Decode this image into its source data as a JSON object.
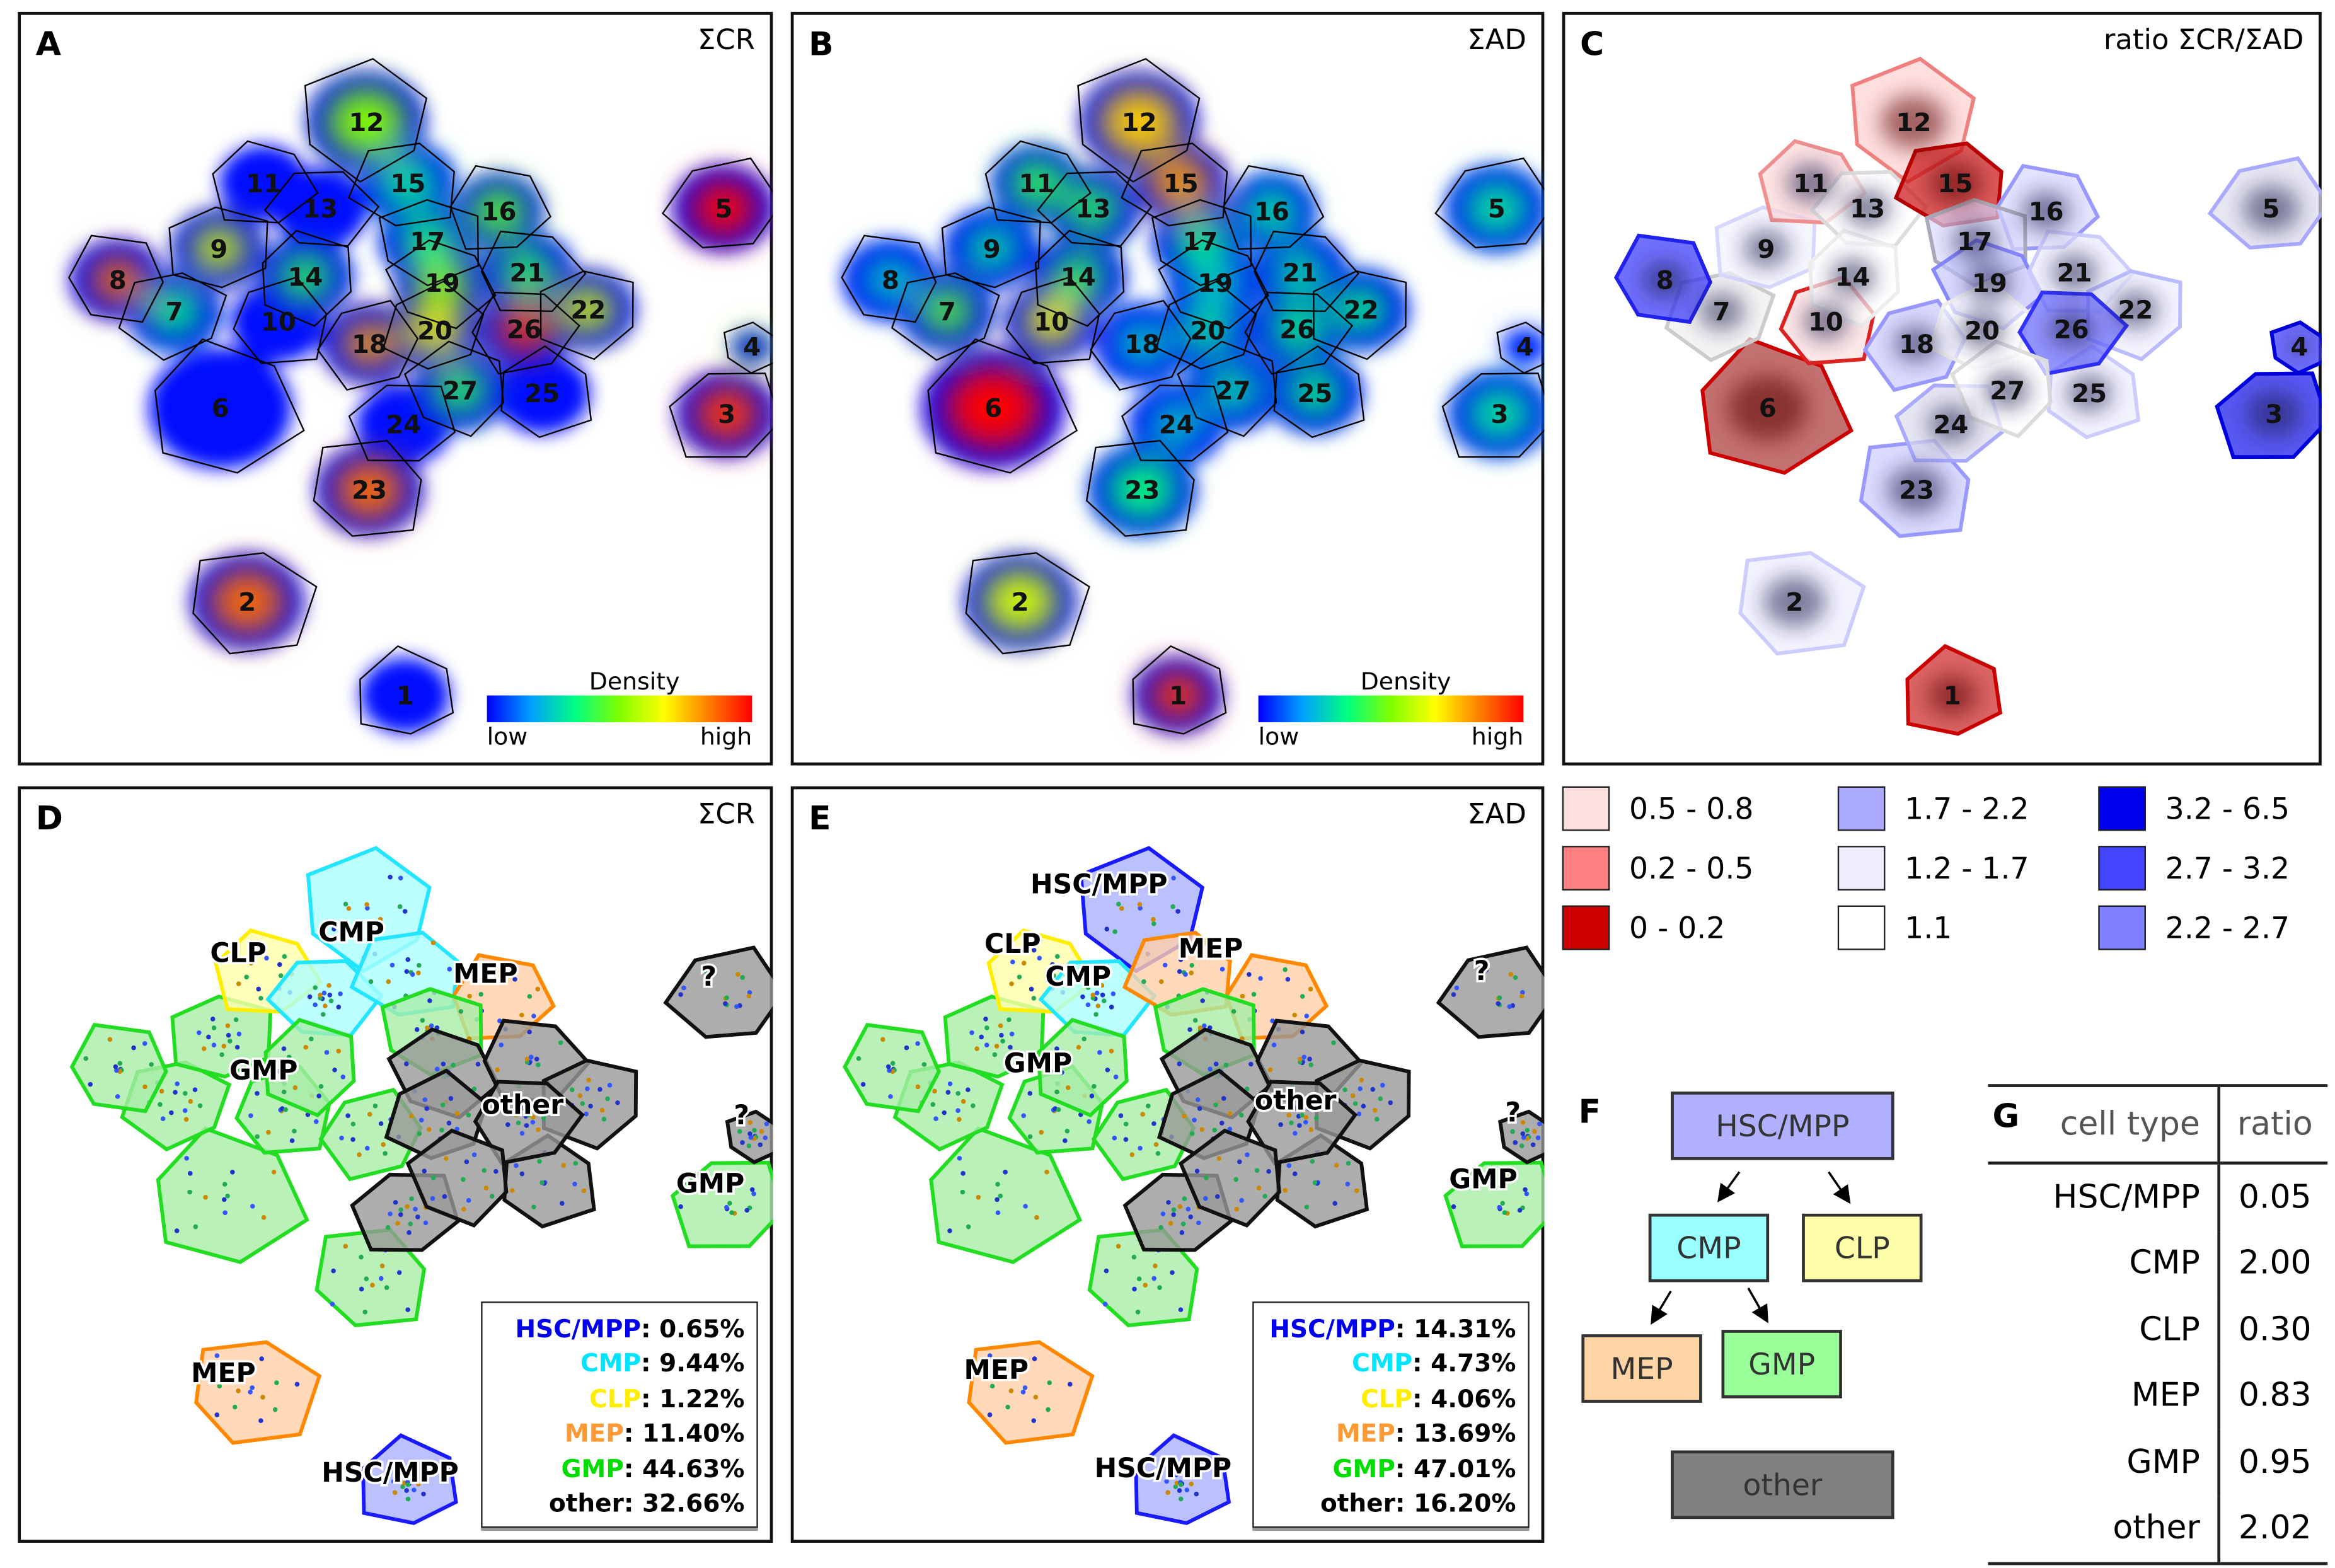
{
  "panels": {
    "A": {
      "letter": "A",
      "title": "ΣCR"
    },
    "B": {
      "letter": "B",
      "title": "ΣAD"
    },
    "C": {
      "letter": "C",
      "title": "ratio ΣCR/ΣAD"
    },
    "D": {
      "letter": "D",
      "title": "ΣCR"
    },
    "E": {
      "letter": "E",
      "title": "ΣAD"
    }
  },
  "density_colorbar": {
    "title": "Density",
    "low": "low",
    "high": "high"
  },
  "clusters": [
    "1",
    "2",
    "3",
    "4",
    "5",
    "6",
    "7",
    "8",
    "9",
    "10",
    "11",
    "12",
    "13",
    "14",
    "15",
    "16",
    "17",
    "18",
    "19",
    "20",
    "21",
    "22",
    "23",
    "24",
    "25",
    "26",
    "27"
  ],
  "ratio_legend": [
    {
      "label": "0.5 - 0.8",
      "color": "#ffe0e0"
    },
    {
      "label": "1.7 - 2.2",
      "color": "#aaaaff"
    },
    {
      "label": "3.2 - 6.5",
      "color": "#0000ee"
    },
    {
      "label": "0.2 - 0.5",
      "color": "#ff8080"
    },
    {
      "label": "1.2 - 1.7",
      "color": "#eeeeff"
    },
    {
      "label": "2.7 - 3.2",
      "color": "#4444ff"
    },
    {
      "label": "0 - 0.2",
      "color": "#cc0000"
    },
    {
      "label": "1.1",
      "color": "#ffffff"
    },
    {
      "label": "2.2 - 2.7",
      "color": "#8080ff"
    }
  ],
  "cell_type_labels": {
    "hsc": "HSC/MPP",
    "cmp": "CMP",
    "clp": "CLP",
    "mep": "MEP",
    "gmp": "GMP",
    "other": "other",
    "unknown": "?"
  },
  "stats_D": [
    {
      "type": "HSC/MPP",
      "value": ": 0.65%",
      "color": "#0000ee"
    },
    {
      "type": "CMP",
      "value": ": 9.44%",
      "color": "#00e5ff"
    },
    {
      "type": "CLP",
      "value": ": 1.22%",
      "color": "#ffee00"
    },
    {
      "type": "MEP",
      "value": ": 11.40%",
      "color": "#ff9933"
    },
    {
      "type": "GMP",
      "value": ": 44.63%",
      "color": "#00dd00"
    },
    {
      "type": "other",
      "value": ": 32.66%",
      "color": "#000000"
    }
  ],
  "stats_E": [
    {
      "type": "HSC/MPP",
      "value": ": 14.31%",
      "color": "#0000ee"
    },
    {
      "type": "CMP",
      "value": ": 4.73%",
      "color": "#00e5ff"
    },
    {
      "type": "CLP",
      "value": ": 4.06%",
      "color": "#ffee00"
    },
    {
      "type": "MEP",
      "value": ": 13.69%",
      "color": "#ff9933"
    },
    {
      "type": "GMP",
      "value": ": 47.01%",
      "color": "#00dd00"
    },
    {
      "type": "other",
      "value": ": 16.20%",
      "color": "#000000"
    }
  ],
  "hierarchy": {
    "letter": "F",
    "nodes": {
      "hsc": "HSC/MPP",
      "cmp": "CMP",
      "clp": "CLP",
      "mep": "MEP",
      "gmp": "GMP",
      "other": "other"
    }
  },
  "table": {
    "letter": "G",
    "headers": [
      "cell type",
      "ratio"
    ],
    "rows": [
      [
        "HSC/MPP",
        "0.05"
      ],
      [
        "CMP",
        "2.00"
      ],
      [
        "CLP",
        "0.30"
      ],
      [
        "MEP",
        "0.83"
      ],
      [
        "GMP",
        "0.95"
      ],
      [
        "other",
        "2.02"
      ]
    ]
  }
}
